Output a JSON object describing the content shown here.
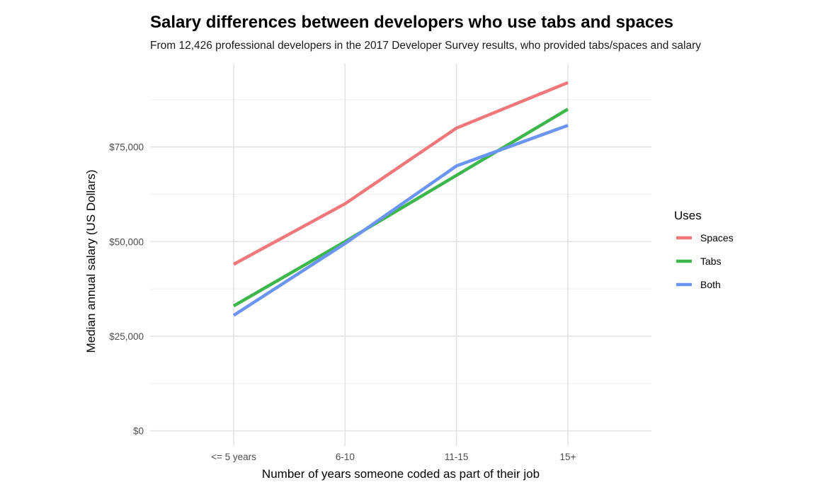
{
  "chart_data": {
    "type": "line",
    "title": "Salary differences between developers who use tabs and spaces",
    "subtitle": "From 12,426 professional developers in the 2017 Developer Survey results, who provided tabs/spaces and salary",
    "xlabel": "Number of years someone coded as part of their job",
    "ylabel": "Median annual salary (US Dollars)",
    "categories": [
      "<= 5 years",
      "6-10",
      "11-15",
      "15+"
    ],
    "ylim": [
      -4000,
      97000
    ],
    "yticks": [
      0,
      25000,
      50000,
      75000
    ],
    "ytick_labels": [
      "$0",
      "$25,000",
      "$50,000",
      "$75,000"
    ],
    "grid": true,
    "legend": {
      "title": "Uses",
      "placement": "right"
    },
    "series": [
      {
        "name": "Spaces",
        "color": "#F0777A",
        "values": [
          44000,
          60000,
          80000,
          92000
        ]
      },
      {
        "name": "Tabs",
        "color": "#3DB74B",
        "values": [
          33000,
          50000,
          67500,
          85000
        ]
      },
      {
        "name": "Both",
        "color": "#6B95F2",
        "values": [
          30500,
          49500,
          70000,
          80700
        ]
      }
    ]
  }
}
